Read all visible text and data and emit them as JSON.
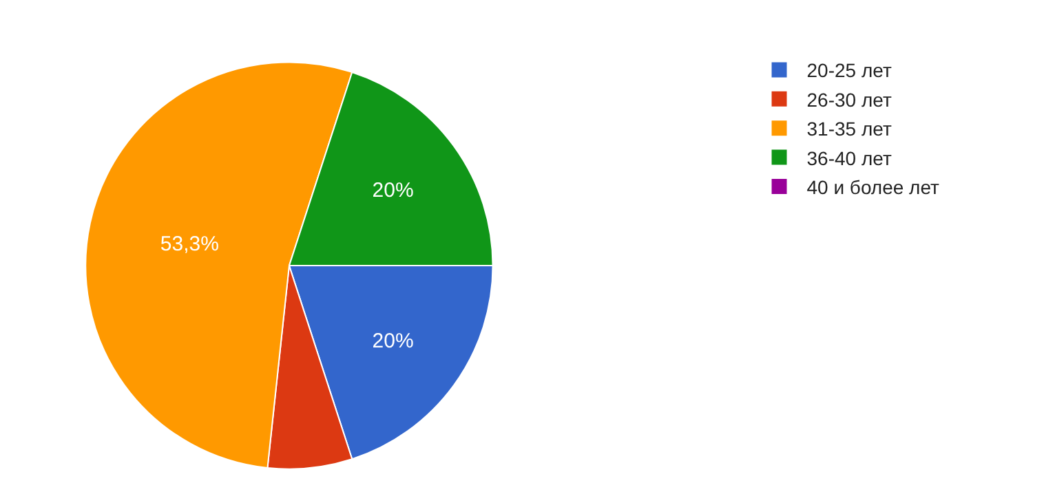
{
  "chart_data": {
    "type": "pie",
    "categories": [
      "20-25 лет",
      "26-30 лет",
      "31-35 лет",
      "36-40 лет",
      "40 и более лет"
    ],
    "values": [
      20,
      6.7,
      53.3,
      20,
      0
    ],
    "colors": [
      "#3366cc",
      "#dc3912",
      "#ff9900",
      "#109618",
      "#990099"
    ],
    "value_labels": [
      "20%",
      null,
      "53,3%",
      "20%",
      null
    ],
    "legend": "right"
  }
}
